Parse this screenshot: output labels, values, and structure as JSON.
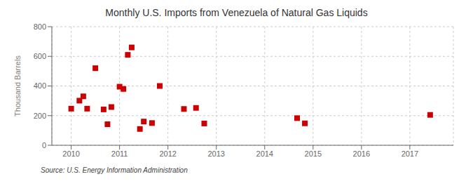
{
  "chart_data": {
    "type": "scatter",
    "title": "Monthly U.S. Imports from Venezuela of Natural Gas Liquids",
    "ylabel": "Thousand Barrels",
    "annotations": [
      "Source: U.S. Energy Information Administration"
    ],
    "x": [
      2010.0,
      2010.17,
      2010.25,
      2010.33,
      2010.5,
      2010.67,
      2010.75,
      2010.83,
      2011.0,
      2011.08,
      2011.17,
      2011.25,
      2011.42,
      2011.5,
      2011.67,
      2011.83,
      2012.33,
      2012.58,
      2012.75,
      2014.67,
      2014.83,
      2017.42
    ],
    "values": [
      247,
      301,
      330,
      247,
      520,
      242,
      142,
      258,
      395,
      380,
      610,
      660,
      110,
      160,
      150,
      400,
      245,
      252,
      147,
      183,
      148,
      205
    ],
    "color": "#cc0000",
    "marker": "square",
    "xlim": [
      2009.6,
      2017.9
    ],
    "xticks": [
      2010,
      2011,
      2012,
      2013,
      2014,
      2015,
      2016,
      2017
    ],
    "ylim": [
      0,
      800
    ],
    "yticks": [
      0,
      200,
      400,
      600,
      800
    ],
    "grid": true
  }
}
